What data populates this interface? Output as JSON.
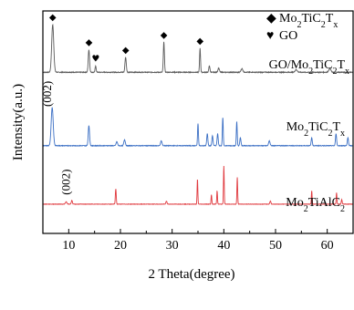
{
  "chart_data": {
    "type": "line",
    "xlabel": "2 Theta(degree)",
    "ylabel": "Intensity(a.u.)",
    "xlim": [
      5,
      65
    ],
    "x_ticks": [
      10,
      20,
      30,
      40,
      50,
      60
    ],
    "x_tick_labels": [
      "10",
      "20",
      "30",
      "40",
      "50",
      "60"
    ],
    "grid": false,
    "series": [
      {
        "name": "GO/Mo2TiC2Tx",
        "label": {
          "base": "GO/Mo",
          "sub1": "2",
          "mid": "TiC",
          "sub2": "2",
          "end": "T",
          "sub3": "x"
        },
        "color": "#5a5a5a",
        "baseline": 0.05,
        "noise": 0.015,
        "peaks": [
          {
            "x": 6.9,
            "h": 0.95,
            "w": 0.28
          },
          {
            "x": 13.9,
            "h": 0.45,
            "w": 0.18
          },
          {
            "x": 15.2,
            "h": 0.12,
            "w": 0.15
          },
          {
            "x": 21.0,
            "h": 0.3,
            "w": 0.18
          },
          {
            "x": 28.4,
            "h": 0.6,
            "w": 0.15
          },
          {
            "x": 35.4,
            "h": 0.48,
            "w": 0.13
          },
          {
            "x": 37.2,
            "h": 0.13,
            "w": 0.15
          },
          {
            "x": 39.0,
            "h": 0.08,
            "w": 0.2
          },
          {
            "x": 43.5,
            "h": 0.07,
            "w": 0.25
          },
          {
            "x": 54.0,
            "h": 0.05,
            "w": 0.3
          },
          {
            "x": 60.5,
            "h": 0.07,
            "w": 0.3
          }
        ]
      },
      {
        "name": "Mo2TiC2Tx",
        "label": {
          "base": "Mo",
          "sub1": "2",
          "mid": "TiC",
          "sub2": "2",
          "end": "T",
          "sub3": "x"
        },
        "color": "#3b6fc4",
        "baseline": 0.05,
        "noise": 0.015,
        "peaks": [
          {
            "x": 6.8,
            "h": 0.95,
            "w": 0.28
          },
          {
            "x": 13.9,
            "h": 0.5,
            "w": 0.18
          },
          {
            "x": 19.3,
            "h": 0.1,
            "w": 0.2
          },
          {
            "x": 20.8,
            "h": 0.15,
            "w": 0.2
          },
          {
            "x": 27.9,
            "h": 0.12,
            "w": 0.2
          },
          {
            "x": 35.0,
            "h": 0.55,
            "w": 0.12
          },
          {
            "x": 36.8,
            "h": 0.3,
            "w": 0.15
          },
          {
            "x": 37.8,
            "h": 0.25,
            "w": 0.15
          },
          {
            "x": 38.8,
            "h": 0.3,
            "w": 0.15
          },
          {
            "x": 39.8,
            "h": 0.7,
            "w": 0.12
          },
          {
            "x": 42.5,
            "h": 0.6,
            "w": 0.12
          },
          {
            "x": 43.2,
            "h": 0.2,
            "w": 0.15
          },
          {
            "x": 48.8,
            "h": 0.12,
            "w": 0.2
          },
          {
            "x": 57.0,
            "h": 0.2,
            "w": 0.15
          },
          {
            "x": 61.7,
            "h": 0.3,
            "w": 0.15
          },
          {
            "x": 64.0,
            "h": 0.2,
            "w": 0.15
          }
        ]
      },
      {
        "name": "Mo2TiAlC2",
        "label": {
          "base": "Mo",
          "sub1": "2",
          "mid": "TiAlC",
          "sub2": "2",
          "end": "",
          "sub3": ""
        },
        "color": "#e0393e",
        "baseline": 0.05,
        "noise": 0.01,
        "peaks": [
          {
            "x": 9.5,
            "h": 0.06,
            "w": 0.2
          },
          {
            "x": 10.6,
            "h": 0.1,
            "w": 0.15
          },
          {
            "x": 19.1,
            "h": 0.4,
            "w": 0.12
          },
          {
            "x": 28.9,
            "h": 0.08,
            "w": 0.15
          },
          {
            "x": 34.9,
            "h": 0.65,
            "w": 0.1
          },
          {
            "x": 37.6,
            "h": 0.25,
            "w": 0.1
          },
          {
            "x": 38.7,
            "h": 0.35,
            "w": 0.1
          },
          {
            "x": 40.0,
            "h": 1.0,
            "w": 0.1
          },
          {
            "x": 42.6,
            "h": 0.7,
            "w": 0.1
          },
          {
            "x": 49.0,
            "h": 0.08,
            "w": 0.15
          },
          {
            "x": 57.0,
            "h": 0.35,
            "w": 0.1
          },
          {
            "x": 61.8,
            "h": 0.3,
            "w": 0.1
          },
          {
            "x": 62.8,
            "h": 0.12,
            "w": 0.12
          }
        ]
      }
    ],
    "legend": {
      "placement": "top-right",
      "entries": [
        {
          "symbol": "◆",
          "label": {
            "base": "Mo",
            "sub1": "2",
            "mid": "TiC",
            "sub2": "2",
            "end": "T",
            "sub3": "x"
          }
        },
        {
          "symbol": "♥",
          "label": {
            "text": "GO"
          }
        }
      ]
    },
    "annotations": [
      {
        "text": "(002)",
        "series": 1,
        "x": 6.9
      },
      {
        "text": "(002)",
        "series": 2,
        "x": 10.6
      }
    ],
    "peak_markers": [
      {
        "series": 0,
        "x": 6.9,
        "symbol": "◆"
      },
      {
        "series": 0,
        "x": 13.9,
        "symbol": "◆"
      },
      {
        "series": 0,
        "x": 15.2,
        "symbol": "♥"
      },
      {
        "series": 0,
        "x": 21.0,
        "symbol": "◆"
      },
      {
        "series": 0,
        "x": 28.4,
        "symbol": "◆"
      },
      {
        "series": 0,
        "x": 35.4,
        "symbol": "◆"
      }
    ]
  }
}
